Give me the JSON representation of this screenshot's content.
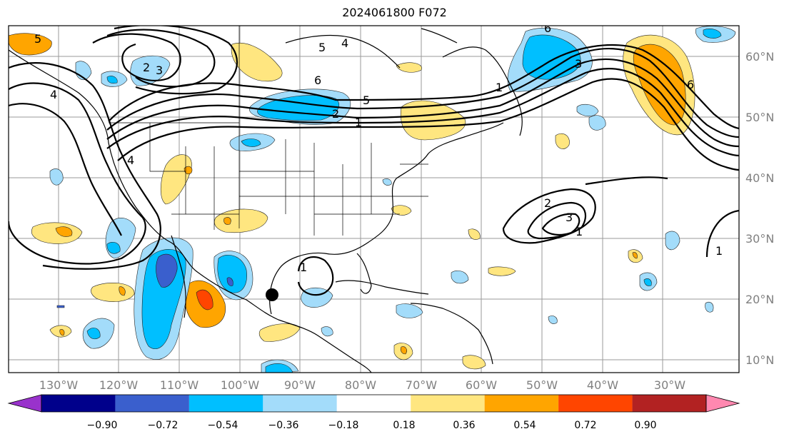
{
  "title": "2024061800 F072",
  "map": {
    "longitudes": [
      "130°W",
      "120°W",
      "110°W",
      "100°W",
      "90°W",
      "80°W",
      "70°W",
      "60°W",
      "50°W",
      "40°W",
      "30°W"
    ],
    "latitudes": [
      "60°N",
      "50°N",
      "40°N",
      "30°N",
      "20°N",
      "10°N"
    ],
    "contour_labels": [
      "1",
      "2",
      "3",
      "4",
      "5",
      "6",
      "1",
      "2",
      "3",
      "1",
      "1",
      "4",
      "5",
      "6",
      "2",
      "3",
      "4",
      "5",
      "6",
      "1"
    ],
    "marker": "storm-center-dot"
  },
  "colorbar": {
    "ticks": [
      "−0.90",
      "−0.72",
      "−0.54",
      "−0.36",
      "−0.18",
      "0.18",
      "0.36",
      "0.54",
      "0.72",
      "0.90"
    ],
    "colors": [
      "#9932cc",
      "#00008b",
      "#3a5fcd",
      "#00bfff",
      "#a3dcfa",
      "#ffffff",
      "#ffe680",
      "#ffa500",
      "#ff4500",
      "#b22222",
      "#ff88b0"
    ]
  }
}
